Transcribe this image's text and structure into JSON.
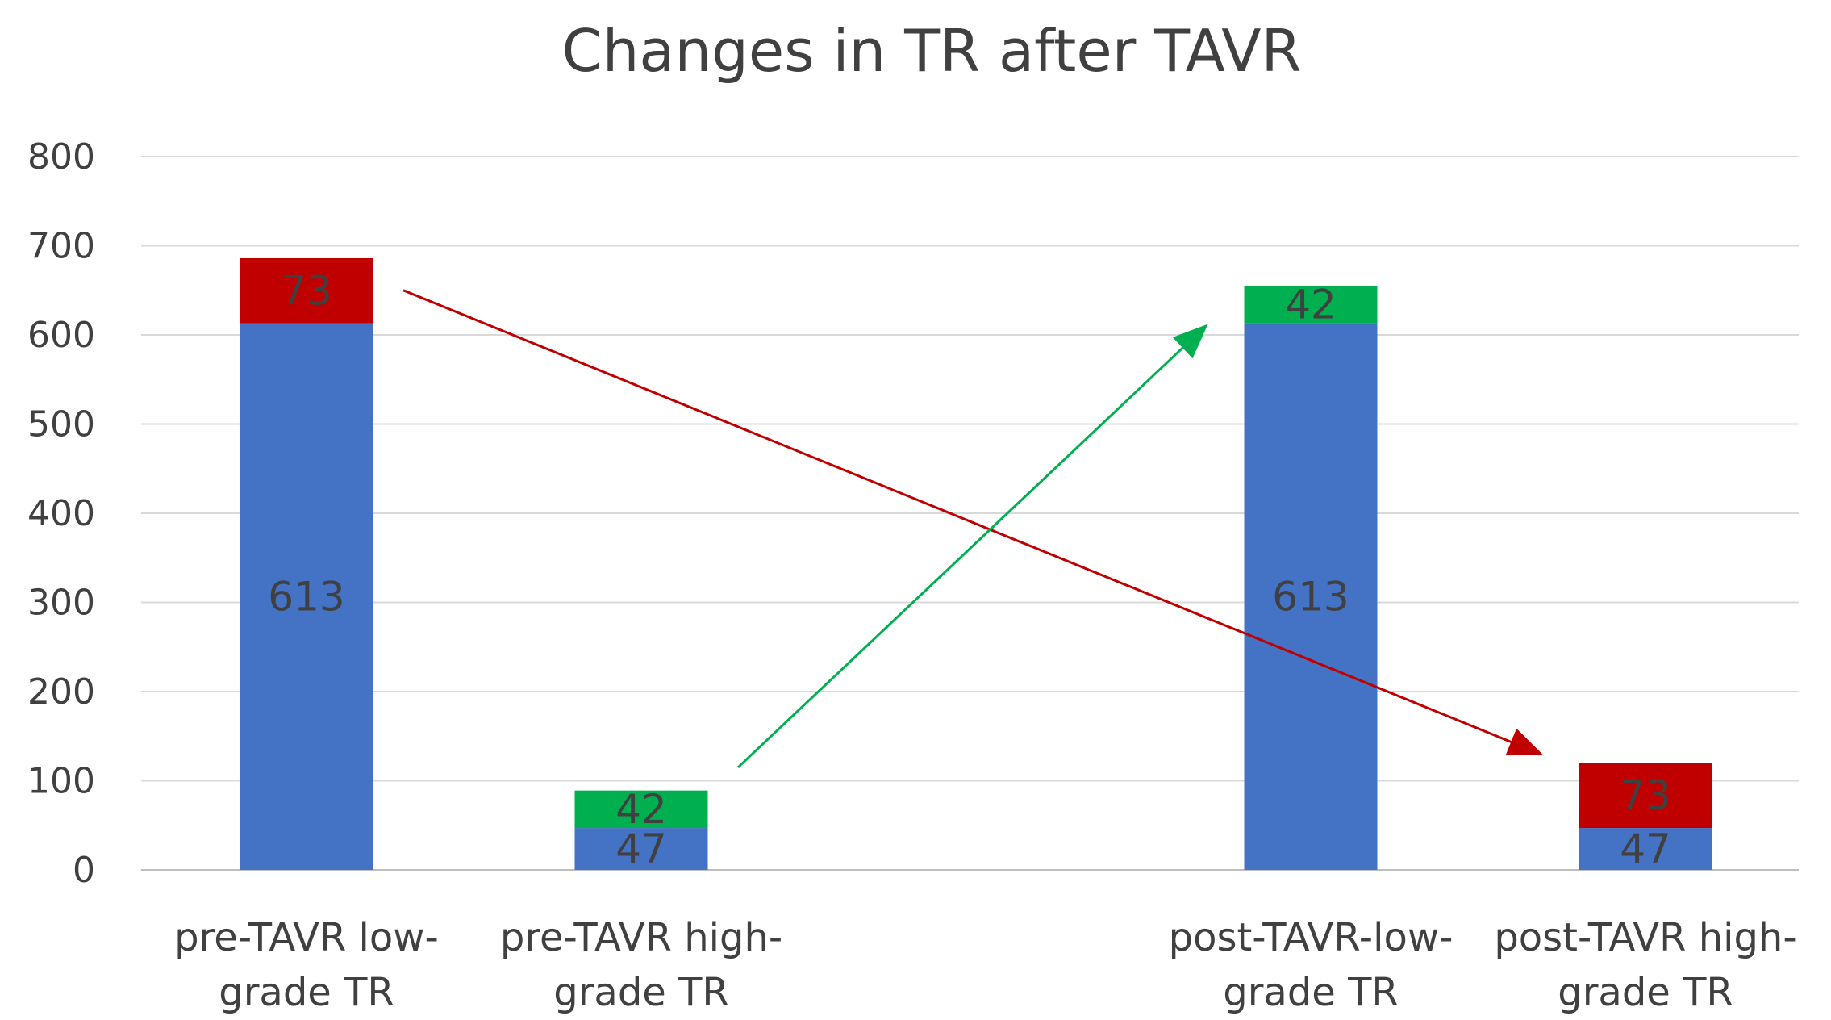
{
  "chart_data": {
    "type": "bar",
    "stacked": true,
    "title": "Changes in TR after TAVR",
    "xlabel": "",
    "ylabel": "",
    "ylim": [
      0,
      800
    ],
    "yticks": [
      "0",
      "100",
      "200",
      "300",
      "400",
      "500",
      "600",
      "700",
      "800"
    ],
    "grid": true,
    "legend": "none",
    "categories": [
      [
        "pre-TAVR low-",
        "grade TR"
      ],
      [
        "pre-TAVR high-",
        "grade TR"
      ],
      [
        "post-TAVR-low-",
        "grade TR"
      ],
      [
        "post-TAVR high-",
        "grade TR"
      ]
    ],
    "slots": [
      0,
      1,
      3,
      4
    ],
    "stacks": [
      [
        {
          "value": 613,
          "color": "#4472C4",
          "label": "613"
        },
        {
          "value": 73,
          "color": "#C00000",
          "label": "73"
        }
      ],
      [
        {
          "value": 47,
          "color": "#4472C4",
          "label": "47"
        },
        {
          "value": 42,
          "color": "#00B050",
          "label": "42"
        }
      ],
      [
        {
          "value": 613,
          "color": "#4472C4",
          "label": "613"
        },
        {
          "value": 42,
          "color": "#00B050",
          "label": "42"
        }
      ],
      [
        {
          "value": 47,
          "color": "#4472C4",
          "label": "47"
        },
        {
          "value": 73,
          "color": "#C00000",
          "label": "73"
        }
      ]
    ],
    "arrows": [
      {
        "from": [
          0,
          650
        ],
        "to": [
          4,
          130
        ],
        "color": "#C00000"
      },
      {
        "from": [
          1,
          115
        ],
        "to": [
          3,
          610
        ],
        "color": "#00B050"
      }
    ]
  }
}
